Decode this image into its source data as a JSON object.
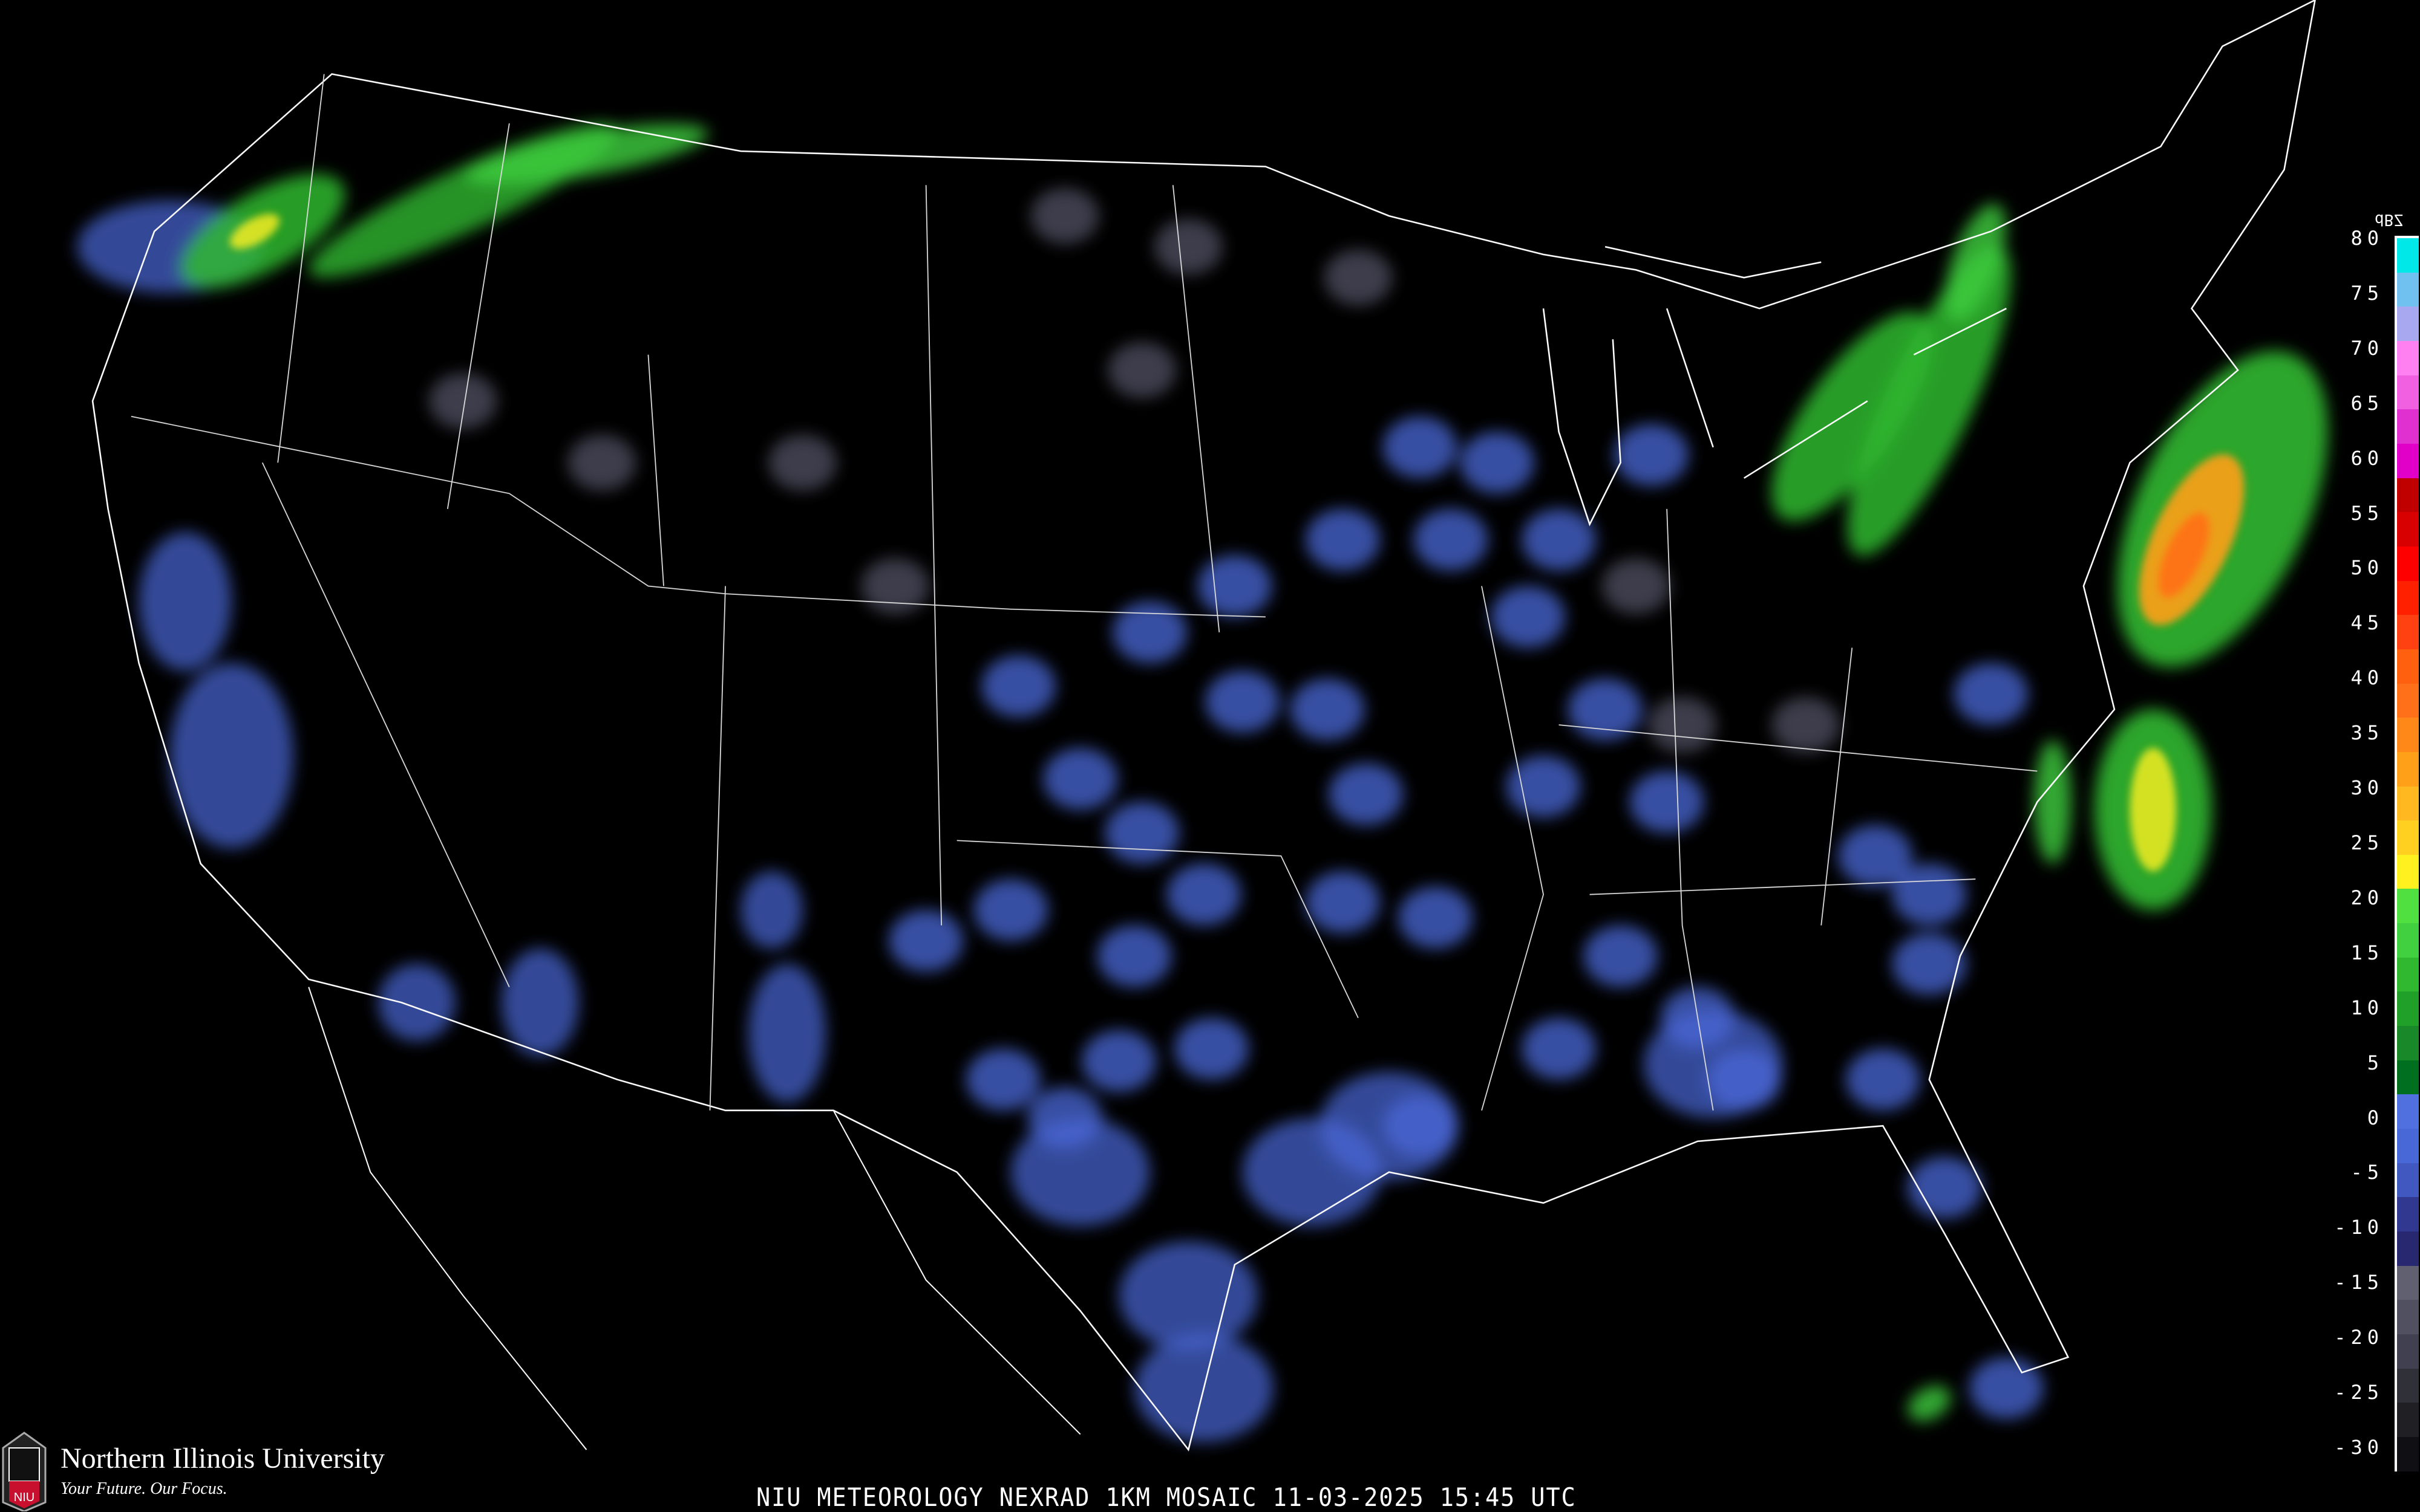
{
  "title": "NIU METEOROLOGY NEXRAD 1KM MOSAIC  11-03-2025 15:45 UTC",
  "logo": {
    "name": "Northern Illinois University",
    "tagline": "Your Future. Our Focus.",
    "mark": "NIU",
    "accent": "#c8102e"
  },
  "colorbar": {
    "unit": "dBZ",
    "ticks": [
      "80",
      "75",
      "70",
      "65",
      "60",
      "55",
      "50",
      "45",
      "40",
      "35",
      "30",
      "25",
      "20",
      "15",
      "10",
      "5",
      "0",
      "-5",
      "-10",
      "-15",
      "-20",
      "-25",
      "-30"
    ],
    "bands": [
      "#00e8e8",
      "#70c0f0",
      "#a8a8f0",
      "#ff80f0",
      "#f060e0",
      "#e030d0",
      "#e000c8",
      "#c00000",
      "#d80000",
      "#ff0000",
      "#ff2000",
      "#ff4010",
      "#ff6010",
      "#ff7018",
      "#ff8818",
      "#ffa018",
      "#ffb820",
      "#ffd020",
      "#fff020",
      "#50e040",
      "#40d040",
      "#30b830",
      "#20a028",
      "#188828",
      "#007020",
      "#5070e0",
      "#4868d8",
      "#4058c0",
      "#303890",
      "#282870",
      "#606070",
      "#505060",
      "#404050",
      "#303038",
      "#202024",
      "#101014"
    ]
  },
  "map_colors": {
    "background": "#000000",
    "border": "#ffffff",
    "county": "#555555",
    "highway": "#8a4a2a"
  }
}
